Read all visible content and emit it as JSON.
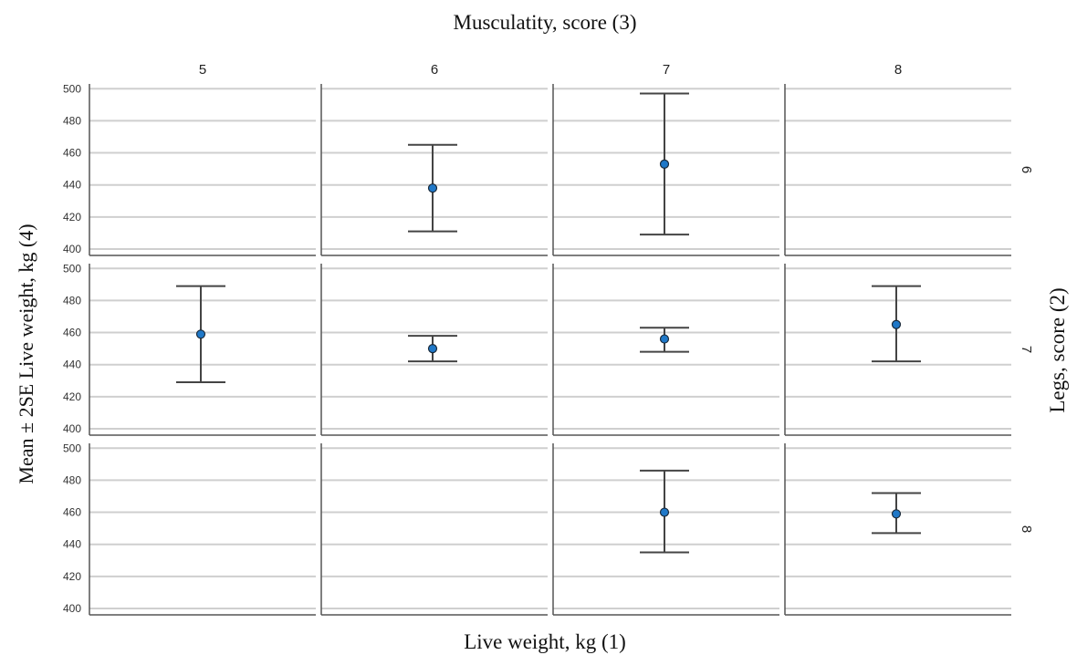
{
  "chart_data": {
    "type": "error-bar",
    "title": "Musculatity, score (3)",
    "xlabel": "Live weight, kg (1)",
    "ylabel": "Mean ± 2SE Live weight, kg (4)",
    "row_label": "Legs, score (2)",
    "columns": [
      "5",
      "6",
      "7",
      "8"
    ],
    "rows": [
      "6",
      "7",
      "8"
    ],
    "ylim": [
      396,
      503
    ],
    "yticks": [
      400,
      420,
      440,
      460,
      480,
      500
    ],
    "grid": true,
    "marker_color": "#1f78c8",
    "cells": [
      {
        "row": "6",
        "col": "6",
        "mean": 438,
        "low": 411,
        "high": 465
      },
      {
        "row": "6",
        "col": "7",
        "mean": 453,
        "low": 409,
        "high": 497
      },
      {
        "row": "7",
        "col": "5",
        "mean": 459,
        "low": 429,
        "high": 489
      },
      {
        "row": "7",
        "col": "6",
        "mean": 450,
        "low": 442,
        "high": 458
      },
      {
        "row": "7",
        "col": "7",
        "mean": 456,
        "low": 448,
        "high": 463
      },
      {
        "row": "7",
        "col": "8",
        "mean": 465,
        "low": 442,
        "high": 489
      },
      {
        "row": "8",
        "col": "7",
        "mean": 460,
        "low": 435,
        "high": 486
      },
      {
        "row": "8",
        "col": "8",
        "mean": 459,
        "low": 447,
        "high": 472
      }
    ]
  }
}
